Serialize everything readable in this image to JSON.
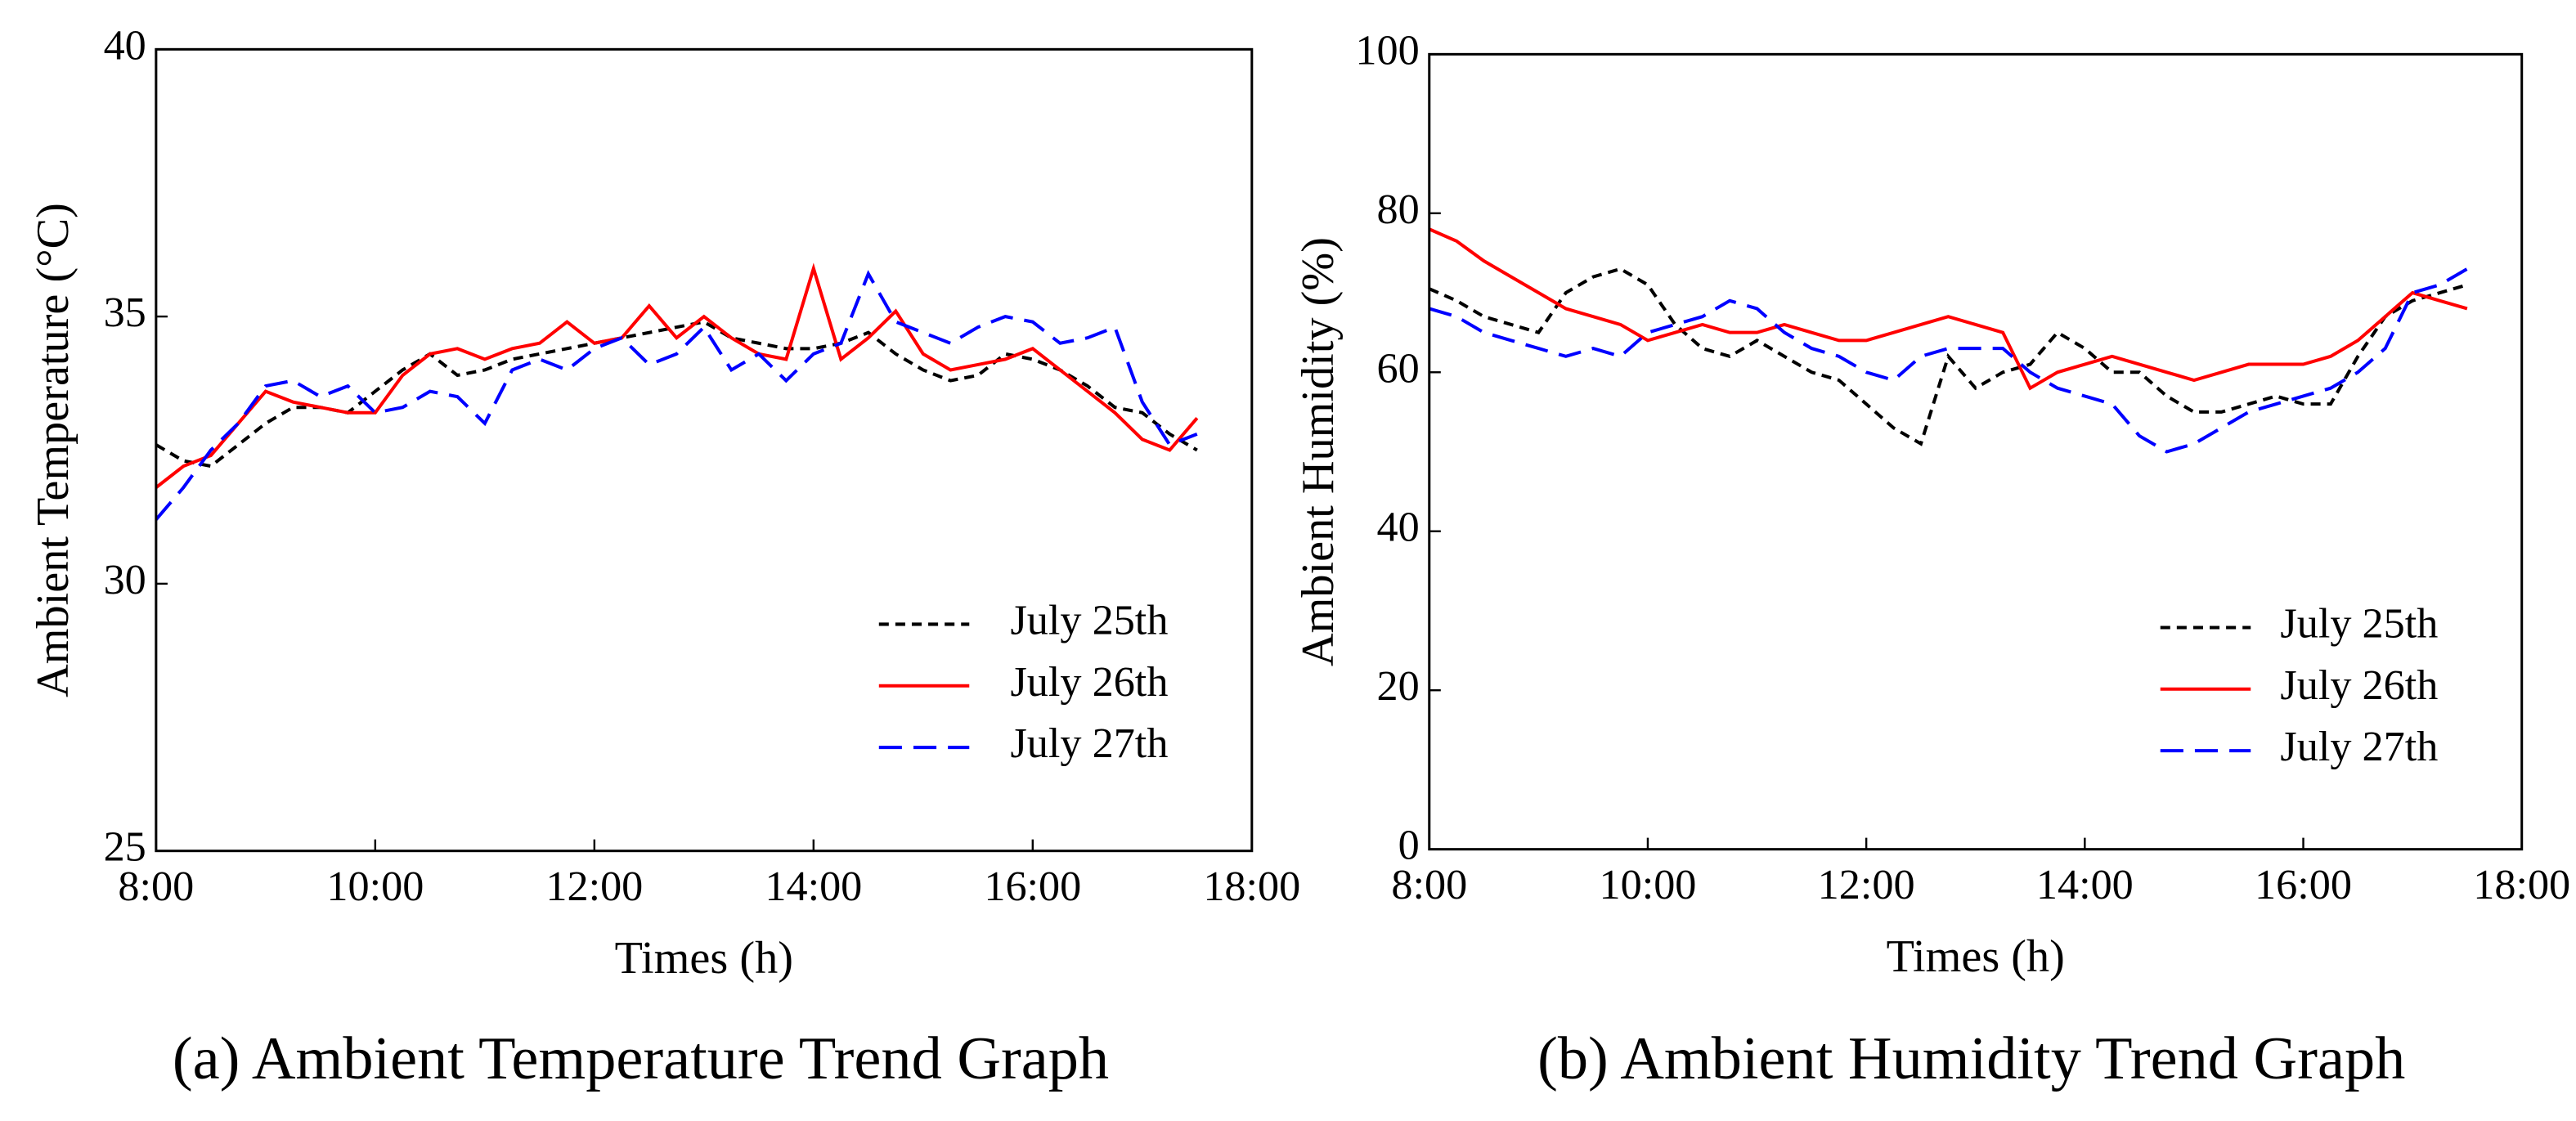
{
  "chart_data": [
    {
      "type": "line",
      "caption": "(a) Ambient Temperature Trend Graph",
      "xlabel": "Times (h)",
      "ylabel": "Ambient Temperature (°C)",
      "x": [
        8,
        8.25,
        8.5,
        8.75,
        9,
        9.25,
        9.5,
        9.75,
        10,
        10.25,
        10.5,
        10.75,
        11,
        11.25,
        11.5,
        11.75,
        12,
        12.25,
        12.5,
        12.75,
        13,
        13.25,
        13.5,
        13.75,
        14,
        14.25,
        14.5,
        14.75,
        15,
        15.25,
        15.5,
        15.75,
        16,
        16.25,
        16.5,
        16.75,
        17,
        17.25,
        17.5
      ],
      "xlim": [
        8,
        18
      ],
      "xticks": [
        {
          "value": 8,
          "label": "8:00"
        },
        {
          "value": 10,
          "label": "10:00"
        },
        {
          "value": 12,
          "label": "12:00"
        },
        {
          "value": 14,
          "label": "14:00"
        },
        {
          "value": 16,
          "label": "16:00"
        },
        {
          "value": 18,
          "label": "18:00"
        }
      ],
      "ylim": [
        25,
        40
      ],
      "yticks": [
        25,
        30,
        35,
        40
      ],
      "legend": "lower right",
      "series": [
        {
          "name": "July 25th",
          "color": "#000000",
          "linestyle": "dashed",
          "values": [
            32.6,
            32.3,
            32.2,
            32.6,
            33.0,
            33.3,
            33.3,
            33.2,
            33.6,
            34.0,
            34.3,
            33.9,
            34.0,
            34.2,
            34.3,
            34.4,
            34.5,
            34.6,
            34.7,
            34.8,
            34.9,
            34.6,
            34.5,
            34.4,
            34.4,
            34.5,
            34.7,
            34.3,
            34.0,
            33.8,
            33.9,
            34.3,
            34.2,
            34.0,
            33.7,
            33.3,
            33.2,
            32.8,
            32.5
          ]
        },
        {
          "name": "July 26th",
          "color": "#ff0000",
          "linestyle": "solid",
          "values": [
            31.8,
            32.2,
            32.4,
            33.0,
            33.6,
            33.4,
            33.3,
            33.2,
            33.2,
            33.9,
            34.3,
            34.4,
            34.2,
            34.4,
            34.5,
            34.9,
            34.5,
            34.6,
            35.2,
            34.6,
            35.0,
            34.6,
            34.3,
            34.2,
            35.9,
            34.2,
            34.6,
            35.1,
            34.3,
            34.0,
            34.1,
            34.2,
            34.4,
            34.0,
            33.6,
            33.2,
            32.7,
            32.5,
            33.1
          ]
        },
        {
          "name": "July 27th",
          "color": "#0000ff",
          "linestyle": "longdash",
          "values": [
            31.2,
            31.8,
            32.5,
            33.0,
            33.7,
            33.8,
            33.5,
            33.7,
            33.2,
            33.3,
            33.6,
            33.5,
            33.0,
            34.0,
            34.2,
            34.0,
            34.4,
            34.6,
            34.1,
            34.3,
            34.8,
            34.0,
            34.3,
            33.8,
            34.3,
            34.5,
            35.8,
            34.9,
            34.7,
            34.5,
            34.8,
            35.0,
            34.9,
            34.5,
            34.6,
            34.8,
            33.4,
            32.6,
            32.8
          ]
        }
      ]
    },
    {
      "type": "line",
      "caption": "(b) Ambient Humidity Trend Graph",
      "xlabel": "Times (h)",
      "ylabel": "Ambient Humidity (%)",
      "x": [
        8,
        8.25,
        8.5,
        8.75,
        9,
        9.25,
        9.5,
        9.75,
        10,
        10.25,
        10.5,
        10.75,
        11,
        11.25,
        11.5,
        11.75,
        12,
        12.25,
        12.5,
        12.75,
        13,
        13.25,
        13.5,
        13.75,
        14,
        14.25,
        14.5,
        14.75,
        15,
        15.25,
        15.5,
        15.75,
        16,
        16.25,
        16.5,
        16.75,
        17,
        17.25,
        17.5
      ],
      "xlim": [
        8,
        18
      ],
      "xticks": [
        {
          "value": 8,
          "label": "8:00"
        },
        {
          "value": 10,
          "label": "10:00"
        },
        {
          "value": 12,
          "label": "12:00"
        },
        {
          "value": 14,
          "label": "14:00"
        },
        {
          "value": 16,
          "label": "16:00"
        },
        {
          "value": 18,
          "label": "18:00"
        }
      ],
      "ylim": [
        0,
        100
      ],
      "yticks": [
        0,
        20,
        40,
        60,
        80,
        100
      ],
      "legend": "lower right",
      "series": [
        {
          "name": "July 25th",
          "color": "#000000",
          "linestyle": "dashed",
          "values": [
            70.5,
            69,
            67,
            66,
            65,
            70,
            72,
            73,
            71,
            66,
            63,
            62,
            64,
            62,
            60,
            59,
            56,
            53,
            51,
            62,
            58,
            60,
            61,
            65,
            63,
            60,
            60,
            57,
            55,
            55,
            56,
            57,
            56,
            56,
            62,
            67,
            69,
            70,
            71
          ]
        },
        {
          "name": "July 26th",
          "color": "#ff0000",
          "linestyle": "solid",
          "values": [
            78,
            76.5,
            74,
            72,
            70,
            68,
            67,
            66,
            64,
            65,
            66,
            65,
            65,
            66,
            65,
            64,
            64,
            65,
            66,
            67,
            66,
            65,
            58,
            60,
            61,
            62,
            61,
            60,
            59,
            60,
            61,
            61,
            61,
            62,
            64,
            67,
            70,
            69,
            68
          ]
        },
        {
          "name": "July 27th",
          "color": "#0000ff",
          "linestyle": "longdash",
          "values": [
            68,
            67,
            65,
            64,
            63,
            62,
            63,
            62,
            65,
            66,
            67,
            69,
            68,
            65,
            63,
            62,
            60,
            59,
            62,
            63,
            63,
            63,
            60,
            58,
            57,
            56,
            52,
            50,
            51,
            53,
            55,
            56,
            57,
            58,
            60,
            63,
            70,
            71,
            73
          ]
        }
      ]
    }
  ]
}
